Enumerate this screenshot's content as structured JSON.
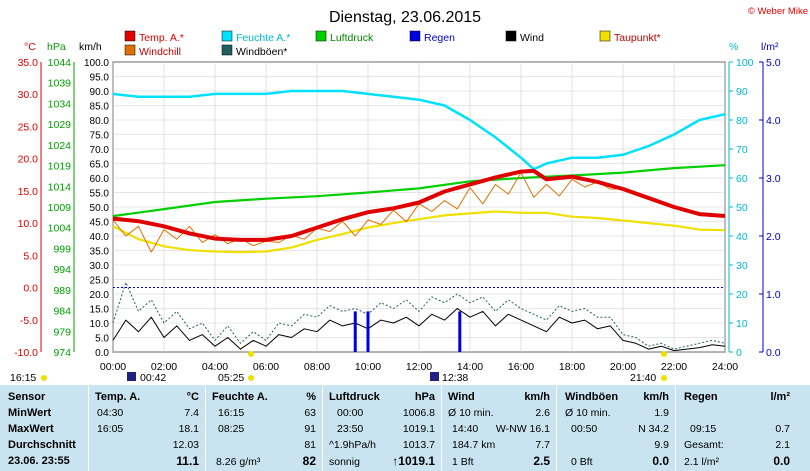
{
  "title": "Dienstag, 23.06.2015",
  "copyright": "© Weber Mike",
  "colors": {
    "temp": "#e00000",
    "feuchte": "#00e0ff",
    "luftdruck": "#00d000",
    "regen": "#0000e0",
    "wind": "#000000",
    "taupunkt": "#f0e000",
    "windchill": "#e07000",
    "windboen": "#206060",
    "grid": "#cfcfcf",
    "table_bg": "#c9e4f0"
  },
  "chart_data": {
    "type": "line",
    "title": "Dienstag, 23.06.2015",
    "legend": [
      {
        "name": "Temp. A.*",
        "color": "#e00000"
      },
      {
        "name": "Feuchte A.*",
        "color": "#00e0ff"
      },
      {
        "name": "Luftdruck",
        "color": "#00d000"
      },
      {
        "name": "Regen",
        "color": "#0000e0"
      },
      {
        "name": "Wind",
        "color": "#000000"
      },
      {
        "name": "Taupunkt*",
        "color": "#f0e000"
      },
      {
        "name": "Windchill",
        "color": "#e07000"
      },
      {
        "name": "Windböen*",
        "color": "#206060"
      }
    ],
    "axes": {
      "temp": {
        "label": "°C",
        "range": [
          -10,
          35
        ],
        "ticks": [
          "-10.0",
          "-5.0",
          "0.0",
          "5.0",
          "10.0",
          "15.0",
          "20.0",
          "25.0",
          "30.0",
          "35.0"
        ]
      },
      "hpa": {
        "label": "hPa",
        "range": [
          974,
          1044
        ],
        "ticks": [
          "974",
          "979",
          "984",
          "989",
          "994",
          "999",
          "1004",
          "1009",
          "1014",
          "1019",
          "1024",
          "1029",
          "1034",
          "1039",
          "1044"
        ]
      },
      "kmh": {
        "label": "km/h",
        "range": [
          0,
          100
        ],
        "ticks": [
          "0.0",
          "5.0",
          "10.0",
          "15.0",
          "20.0",
          "25.0",
          "30.0",
          "35.0",
          "40.0",
          "45.0",
          "50.0",
          "55.0",
          "60.0",
          "65.0",
          "70.0",
          "75.0",
          "80.0",
          "85.0",
          "90.0",
          "95.0",
          "100.0"
        ]
      },
      "pct": {
        "label": "%",
        "range": [
          0,
          100
        ],
        "ticks": [
          "0",
          "10",
          "20",
          "30",
          "40",
          "50",
          "60",
          "70",
          "80",
          "90",
          "100"
        ]
      },
      "rain": {
        "label": "l/m²",
        "range": [
          0,
          5
        ],
        "ticks": [
          "0.0",
          "1.0",
          "2.0",
          "3.0",
          "4.0",
          "5.0"
        ]
      },
      "x": {
        "range": [
          0,
          24
        ],
        "ticks": [
          "00:00",
          "02:00",
          "04:00",
          "06:00",
          "08:00",
          "10:00",
          "12:00",
          "14:00",
          "16:00",
          "18:00",
          "20:00",
          "22:00",
          "24:00"
        ]
      }
    },
    "series": [
      {
        "name": "Temp. A.*",
        "axis": "temp",
        "x": [
          0,
          1,
          2,
          3,
          4,
          5,
          6,
          7,
          8,
          9,
          10,
          11,
          12,
          13,
          14,
          15,
          16,
          16.5,
          17,
          18,
          19,
          20,
          21,
          22,
          23,
          24
        ],
        "values": [
          10.7,
          10.3,
          9.5,
          8.4,
          7.6,
          7.4,
          7.4,
          8.0,
          9.3,
          10.6,
          11.7,
          12.3,
          13.2,
          14.9,
          16.0,
          17.1,
          18.0,
          18.1,
          16.8,
          17.2,
          16.4,
          15.3,
          13.9,
          12.5,
          11.4,
          11.1
        ]
      },
      {
        "name": "Feuchte A.*",
        "axis": "pct",
        "x": [
          0,
          1,
          2,
          3,
          4,
          5,
          6,
          7,
          8,
          9,
          10,
          11,
          12,
          13,
          14,
          15,
          16,
          16.5,
          17,
          18,
          19,
          20,
          21,
          22,
          23,
          24
        ],
        "values": [
          89,
          88,
          88,
          88,
          89,
          89,
          89,
          90,
          90,
          90,
          89,
          88,
          87,
          85,
          80,
          74,
          67,
          63,
          65,
          67,
          67,
          68,
          71,
          75,
          80,
          82
        ]
      },
      {
        "name": "Luftdruck",
        "axis": "hpa",
        "x": [
          0,
          2,
          4,
          6,
          8,
          10,
          12,
          14,
          16,
          18,
          20,
          22,
          24
        ],
        "values": [
          1006.8,
          1008.5,
          1010.2,
          1011.0,
          1011.6,
          1012.5,
          1013.5,
          1015.2,
          1016.0,
          1016.6,
          1017.3,
          1018.4,
          1019.1
        ]
      },
      {
        "name": "Taupunkt*",
        "axis": "temp",
        "x": [
          0,
          1,
          2,
          3,
          4,
          5,
          6,
          7,
          8,
          9,
          10,
          11,
          12,
          13,
          14,
          15,
          16,
          17,
          18,
          19,
          20,
          21,
          22,
          23,
          24
        ],
        "values": [
          9.5,
          7.5,
          6.4,
          5.8,
          5.6,
          5.5,
          5.6,
          6.2,
          7.4,
          8.3,
          9.3,
          10.0,
          10.6,
          11.2,
          11.5,
          11.8,
          11.6,
          11.6,
          11.0,
          10.8,
          10.4,
          10.0,
          9.6,
          9.0,
          8.9
        ]
      },
      {
        "name": "Windchill",
        "axis": "temp",
        "x": [
          0,
          0.5,
          1,
          1.5,
          2,
          2.5,
          3,
          3.5,
          4,
          4.5,
          5,
          5.5,
          6,
          6.5,
          7,
          7.5,
          8,
          8.5,
          9,
          9.5,
          10,
          10.5,
          11,
          11.5,
          12,
          12.5,
          13,
          13.5,
          14,
          14.5,
          15,
          15.5,
          16,
          16.5,
          17,
          17.5,
          18,
          18.5,
          19,
          19.5,
          20,
          20.5,
          21,
          21.5,
          22,
          22.5,
          23,
          23.5,
          24
        ],
        "values": [
          10.5,
          8.0,
          9.5,
          5.5,
          9.0,
          7.5,
          9.5,
          7.0,
          8.2,
          6.8,
          7.6,
          6.5,
          7.2,
          7.0,
          8.1,
          7.5,
          9.2,
          8.7,
          10.3,
          8.0,
          10.5,
          9.8,
          12.0,
          10.2,
          13.0,
          11.8,
          13.5,
          12.2,
          15.5,
          13.0,
          16.0,
          14.5,
          17.8,
          14.0,
          16.0,
          14.2,
          16.8,
          15.6,
          16.4,
          15.3,
          15.3,
          14.6,
          13.9,
          13.2,
          12.5,
          12.0,
          11.4,
          11.2,
          11.1
        ]
      },
      {
        "name": "Wind",
        "axis": "kmh",
        "x": [
          0,
          0.5,
          1,
          1.5,
          2,
          2.5,
          3,
          3.5,
          4,
          4.5,
          5,
          5.5,
          6,
          6.5,
          7,
          7.5,
          8,
          8.5,
          9,
          9.5,
          10,
          10.5,
          11,
          11.5,
          12,
          12.5,
          13,
          13.5,
          14,
          14.5,
          15,
          15.5,
          16,
          16.5,
          17,
          17.5,
          18,
          18.5,
          19,
          19.5,
          20,
          20.5,
          21,
          21.5,
          22,
          22.5,
          23,
          23.5,
          24
        ],
        "values": [
          4,
          11,
          7,
          12,
          5,
          9,
          4,
          6,
          2,
          5,
          1,
          4,
          2,
          6,
          5,
          8,
          7,
          11,
          9,
          10,
          8,
          11,
          10,
          12,
          9,
          13,
          11,
          15,
          12,
          14,
          9,
          13,
          11,
          9,
          7,
          12,
          10,
          11,
          8,
          9,
          4,
          3,
          1,
          2,
          0.5,
          1,
          1.5,
          2.5,
          2
        ]
      },
      {
        "name": "Windböen*",
        "axis": "kmh",
        "x": [
          0,
          0.5,
          1,
          1.5,
          2,
          2.5,
          3,
          3.5,
          4,
          4.5,
          5,
          5.5,
          6,
          6.5,
          7,
          7.5,
          8,
          8.5,
          9,
          9.5,
          10,
          10.5,
          11,
          11.5,
          12,
          12.5,
          13,
          13.5,
          14,
          14.5,
          15,
          15.5,
          16,
          16.5,
          17,
          17.5,
          18,
          18.5,
          19,
          19.5,
          20,
          20.5,
          21,
          21.5,
          22,
          22.5,
          23,
          23.5,
          24
        ],
        "values": [
          10,
          24,
          14,
          18,
          10,
          14,
          8,
          10,
          4,
          9,
          3,
          7,
          4,
          10,
          9,
          13,
          12,
          16,
          14,
          15,
          13,
          17,
          15,
          18,
          14,
          19,
          17,
          20,
          17,
          19,
          14,
          18,
          15,
          13,
          11,
          16,
          14,
          15,
          12,
          12,
          6,
          5,
          2,
          3,
          1,
          2,
          3,
          4,
          3
        ]
      },
      {
        "name": "Regen",
        "axis": "rain",
        "type": "bar",
        "x": [
          9.5,
          10,
          13.6
        ],
        "values": [
          0.7,
          0.7,
          0.7
        ]
      }
    ],
    "markers": {
      "sunrise": "05:25",
      "sunset": "21:40",
      "left_time": "16:15",
      "moon_rise": "00:42",
      "moon_set": "12:38"
    },
    "grid": true
  },
  "table": {
    "labels": {
      "sensor": "Sensor",
      "min": "MinWert",
      "max": "MaxWert",
      "avg": "Durchschnitt",
      "now": "23.06. 23:55"
    },
    "temp": {
      "header": "Temp. A.",
      "unit": "°C",
      "min_time": "04:30",
      "min": "7.4",
      "max_time": "16:05",
      "max": "18.1",
      "avg": "12.03",
      "now": "11.1"
    },
    "feuchte": {
      "header": "Feuchte A.",
      "unit": "%",
      "min_time": "16:15",
      "min": "63",
      "max_time": "08:25",
      "max": "91",
      "avg": "81",
      "now_extra": "8.26 g/m³",
      "now": "82"
    },
    "luftdruck": {
      "header": "Luftdruck",
      "unit": "hPa",
      "min_time": "00:00",
      "min": "1006.8",
      "max_time": "23:50",
      "max": "1019.1",
      "avg_label": "^1.9hPa/h",
      "avg": "1013.7",
      "now_label": "sonnig",
      "now": "↑1019.1"
    },
    "wind": {
      "header": "Wind",
      "unit": "km/h",
      "r1_label": "Ø 10 min.",
      "r1": "2.6",
      "r2_time": "14:40",
      "r2_dir": "W-NW 16.1",
      "r3_label": "184.7 km",
      "r3": "7.7",
      "r4_label": "1 Bft",
      "now": "2.5"
    },
    "windboen": {
      "header": "Windböen",
      "unit": "km/h",
      "r1_label": "Ø 10 min.",
      "r1": "1.9",
      "r2_time": "00:50",
      "r2": "N 34.2",
      "r3": "9.9",
      "r4_label": "0 Bft",
      "now": "0.0"
    },
    "regen": {
      "header": "Regen",
      "unit": "l/m²",
      "r2_time": "09:15",
      "r2": "0.7",
      "r3_label": "Gesamt:",
      "r3": "2.1",
      "r4_label": "2.1 l/m²",
      "now": "0.0"
    }
  }
}
